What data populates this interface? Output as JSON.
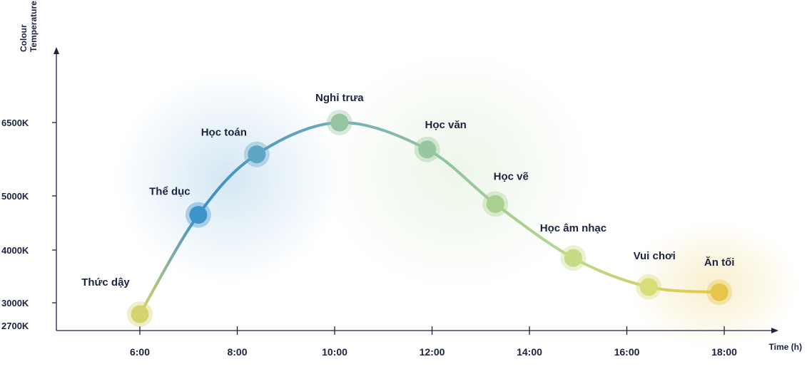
{
  "chart_data": {
    "type": "line",
    "xlabel": "Time (h)",
    "ylabel_lines": [
      "Colour",
      "Temperature (k)"
    ],
    "x_ticks": [
      "6:00",
      "8:00",
      "10:00",
      "12:00",
      "14:00",
      "16:00",
      "18:00"
    ],
    "y_ticks": [
      "2700K",
      "3000K",
      "4000K",
      "5000K",
      "6500K"
    ],
    "y_tick_values": [
      2700,
      3000,
      4000,
      5000,
      6500
    ],
    "points": [
      {
        "label": "Thức dậy",
        "x": 6.0,
        "y": 2850,
        "color": "#d4d36e"
      },
      {
        "label": "Thể dục",
        "x": 7.2,
        "y": 4650,
        "color": "#3f93cb"
      },
      {
        "label": "Học toán",
        "x": 8.4,
        "y": 5850,
        "color": "#5fa6c4"
      },
      {
        "label": "Nghỉ trưa",
        "x": 10.1,
        "y": 6500,
        "color": "#96c4a2"
      },
      {
        "label": "Học văn",
        "x": 11.9,
        "y": 5950,
        "color": "#98c69e"
      },
      {
        "label": "Học vẽ",
        "x": 13.3,
        "y": 4850,
        "color": "#a9d08f"
      },
      {
        "label": "Học âm nhạc",
        "x": 14.9,
        "y": 3850,
        "color": "#c4dd84"
      },
      {
        "label": "Vui chơi",
        "x": 16.45,
        "y": 3300,
        "color": "#d9dd78"
      },
      {
        "label": "Ăn tối",
        "x": 17.9,
        "y": 3200,
        "color": "#e5c64a"
      }
    ]
  }
}
